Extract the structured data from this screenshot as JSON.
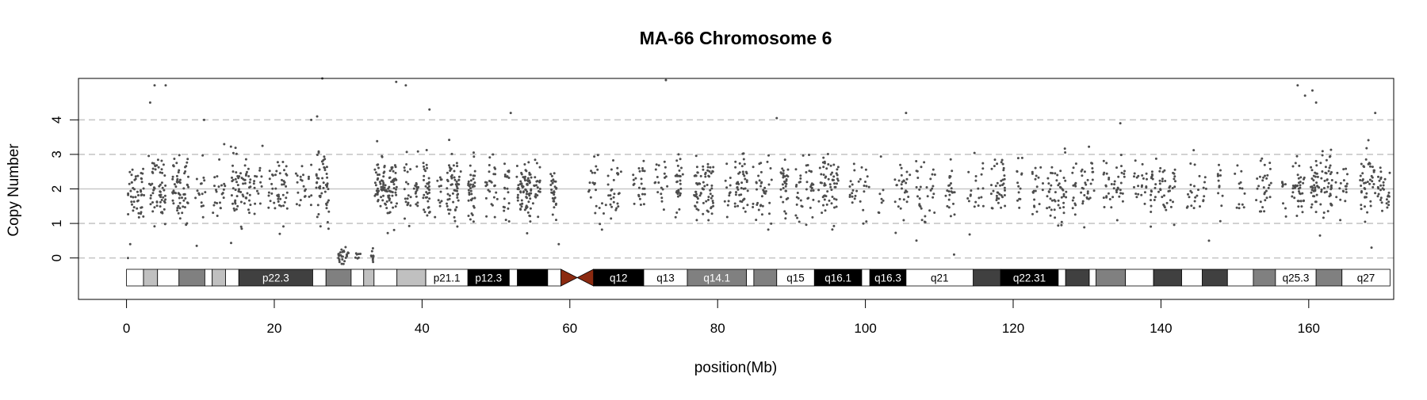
{
  "chart_data": {
    "type": "scatter",
    "title": "MA-66  Chromosome 6",
    "xlabel": "position(Mb)",
    "ylabel": "Copy Number",
    "xlim": [
      -6.5,
      171.5
    ],
    "ylim": [
      -1.2,
      5.2
    ],
    "x_ticks": [
      0,
      20,
      40,
      60,
      80,
      100,
      120,
      140,
      160
    ],
    "y_ticks": [
      0,
      1,
      2,
      3,
      4
    ],
    "y_gridlines": [
      0,
      1,
      3,
      4
    ],
    "y_reference_line": 2,
    "point_color": "#4d4d4d",
    "chromosome_length_mb": 171,
    "centromere": {
      "start": 58.8,
      "end": 63.2,
      "color": "#8b2a10"
    },
    "segments": [
      {
        "start": 0.2,
        "end": 28.0,
        "mean": 2.0,
        "sd": 0.45,
        "density": 1.0
      },
      {
        "start": 28.5,
        "end": 33.5,
        "mean": 0.05,
        "sd": 0.12,
        "density": 1.0
      },
      {
        "start": 33.6,
        "end": 58.5,
        "mean": 2.0,
        "sd": 0.45,
        "density": 1.4
      },
      {
        "start": 62.5,
        "end": 171.0,
        "mean": 2.0,
        "sd": 0.45,
        "density": 1.0
      }
    ],
    "outliers": [
      {
        "x": 3.2,
        "y": 4.5
      },
      {
        "x": 3.8,
        "y": 5.0
      },
      {
        "x": 5.3,
        "y": 5.0
      },
      {
        "x": 10.5,
        "y": 4.0
      },
      {
        "x": 26.5,
        "y": 5.2
      },
      {
        "x": 25.0,
        "y": 4.0
      },
      {
        "x": 25.8,
        "y": 4.1
      },
      {
        "x": 36.5,
        "y": 5.1
      },
      {
        "x": 37.8,
        "y": 5.0
      },
      {
        "x": 41.0,
        "y": 4.3
      },
      {
        "x": 52.0,
        "y": 4.2
      },
      {
        "x": 73.0,
        "y": 5.15
      },
      {
        "x": 105.5,
        "y": 4.2
      },
      {
        "x": 158.5,
        "y": 5.0
      },
      {
        "x": 159.5,
        "y": 4.7
      },
      {
        "x": 160.5,
        "y": 4.85
      },
      {
        "x": 161.0,
        "y": 4.5
      },
      {
        "x": 169.0,
        "y": 4.2
      },
      {
        "x": 134.5,
        "y": 3.9
      },
      {
        "x": 88.0,
        "y": 4.05
      },
      {
        "x": 0.2,
        "y": 0.0
      },
      {
        "x": 0.5,
        "y": 0.4
      },
      {
        "x": 9.5,
        "y": 0.35
      },
      {
        "x": 58.5,
        "y": 0.4
      },
      {
        "x": 112.0,
        "y": 0.1
      },
      {
        "x": 146.5,
        "y": 0.5
      },
      {
        "x": 168.5,
        "y": 0.3
      }
    ],
    "ideogram": {
      "bands": [
        {
          "start": 0.0,
          "end": 2.3,
          "label": "",
          "fill": "#ffffff"
        },
        {
          "start": 2.3,
          "end": 4.2,
          "label": "",
          "fill": "#c0c0c0"
        },
        {
          "start": 4.2,
          "end": 7.1,
          "label": "",
          "fill": "#ffffff"
        },
        {
          "start": 7.1,
          "end": 10.6,
          "label": "",
          "fill": "#808080"
        },
        {
          "start": 10.6,
          "end": 11.6,
          "label": "",
          "fill": "#ffffff"
        },
        {
          "start": 11.6,
          "end": 13.4,
          "label": "",
          "fill": "#c0c0c0"
        },
        {
          "start": 13.4,
          "end": 15.2,
          "label": "",
          "fill": "#ffffff"
        },
        {
          "start": 15.2,
          "end": 25.2,
          "label": "p22.3",
          "fill": "#404040"
        },
        {
          "start": 25.2,
          "end": 27.0,
          "label": "",
          "fill": "#ffffff"
        },
        {
          "start": 27.0,
          "end": 30.4,
          "label": "",
          "fill": "#808080"
        },
        {
          "start": 30.4,
          "end": 32.1,
          "label": "",
          "fill": "#ffffff"
        },
        {
          "start": 32.1,
          "end": 33.5,
          "label": "",
          "fill": "#c0c0c0"
        },
        {
          "start": 33.5,
          "end": 36.6,
          "label": "",
          "fill": "#ffffff"
        },
        {
          "start": 36.6,
          "end": 40.5,
          "label": "",
          "fill": "#c0c0c0"
        },
        {
          "start": 40.5,
          "end": 46.2,
          "label": "p21.1",
          "fill": "#ffffff"
        },
        {
          "start": 46.2,
          "end": 51.8,
          "label": "p12.3",
          "fill": "#000000"
        },
        {
          "start": 51.8,
          "end": 52.9,
          "label": "",
          "fill": "#ffffff"
        },
        {
          "start": 52.9,
          "end": 57.0,
          "label": "",
          "fill": "#000000"
        },
        {
          "start": 57.0,
          "end": 58.8,
          "label": "",
          "fill": "#ffffff"
        },
        {
          "start": 63.2,
          "end": 70.0,
          "label": "q12",
          "fill": "#000000"
        },
        {
          "start": 70.0,
          "end": 75.9,
          "label": "q13",
          "fill": "#ffffff"
        },
        {
          "start": 75.9,
          "end": 83.9,
          "label": "q14.1",
          "fill": "#808080"
        },
        {
          "start": 83.9,
          "end": 84.9,
          "label": "",
          "fill": "#ffffff"
        },
        {
          "start": 84.9,
          "end": 88.0,
          "label": "",
          "fill": "#808080"
        },
        {
          "start": 88.0,
          "end": 93.1,
          "label": "q15",
          "fill": "#ffffff"
        },
        {
          "start": 93.1,
          "end": 99.5,
          "label": "q16.1",
          "fill": "#000000"
        },
        {
          "start": 99.5,
          "end": 100.6,
          "label": "",
          "fill": "#ffffff"
        },
        {
          "start": 100.6,
          "end": 105.5,
          "label": "q16.3",
          "fill": "#000000"
        },
        {
          "start": 105.5,
          "end": 114.6,
          "label": "q21",
          "fill": "#ffffff"
        },
        {
          "start": 114.6,
          "end": 118.3,
          "label": "",
          "fill": "#404040"
        },
        {
          "start": 118.3,
          "end": 126.1,
          "label": "q22.31",
          "fill": "#000000"
        },
        {
          "start": 126.1,
          "end": 127.1,
          "label": "",
          "fill": "#ffffff"
        },
        {
          "start": 127.1,
          "end": 130.3,
          "label": "",
          "fill": "#404040"
        },
        {
          "start": 130.3,
          "end": 131.2,
          "label": "",
          "fill": "#ffffff"
        },
        {
          "start": 131.2,
          "end": 135.2,
          "label": "",
          "fill": "#808080"
        },
        {
          "start": 135.2,
          "end": 139.0,
          "label": "",
          "fill": "#ffffff"
        },
        {
          "start": 139.0,
          "end": 142.8,
          "label": "",
          "fill": "#404040"
        },
        {
          "start": 142.8,
          "end": 145.6,
          "label": "",
          "fill": "#ffffff"
        },
        {
          "start": 145.6,
          "end": 149.0,
          "label": "",
          "fill": "#404040"
        },
        {
          "start": 149.0,
          "end": 152.5,
          "label": "",
          "fill": "#ffffff"
        },
        {
          "start": 152.5,
          "end": 155.5,
          "label": "",
          "fill": "#808080"
        },
        {
          "start": 155.5,
          "end": 161.0,
          "label": "q25.3",
          "fill": "#ffffff"
        },
        {
          "start": 161.0,
          "end": 164.5,
          "label": "",
          "fill": "#808080"
        },
        {
          "start": 164.5,
          "end": 171.0,
          "label": "q27",
          "fill": "#ffffff"
        }
      ]
    },
    "grid": true,
    "legend": "none"
  }
}
